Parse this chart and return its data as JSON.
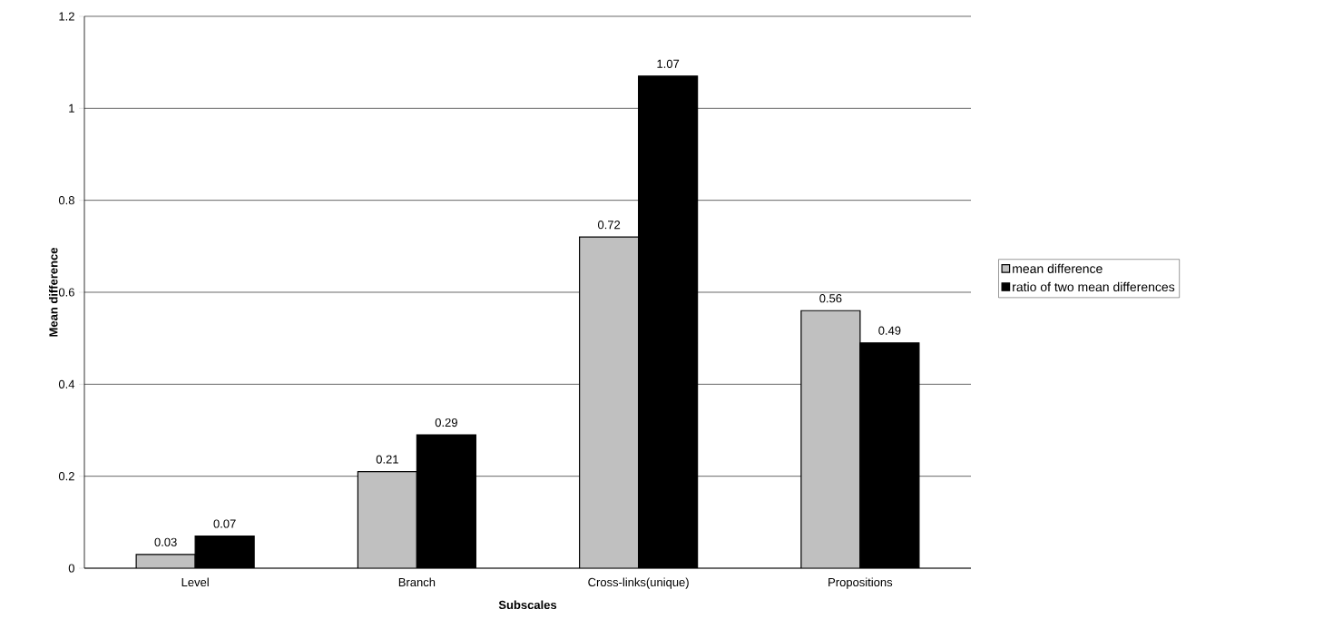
{
  "chart_data": {
    "type": "bar",
    "xlabel": "Subscales",
    "ylabel": "Mean difference",
    "categories": [
      "Level",
      "Branch",
      "Cross-links(unique)",
      "Propositions"
    ],
    "series": [
      {
        "name": "mean difference",
        "color": "#c0c0c0",
        "values": [
          0.03,
          0.21,
          0.72,
          0.56
        ]
      },
      {
        "name": "ratio of two mean differences",
        "color": "#000000",
        "values": [
          0.07,
          0.29,
          1.07,
          0.49
        ]
      }
    ],
    "ylim": [
      0,
      1.2
    ],
    "yticks": [
      0,
      0.2,
      0.4,
      0.6,
      0.8,
      1,
      1.2
    ],
    "grid": "y",
    "legend": "right",
    "data_labels": true
  }
}
